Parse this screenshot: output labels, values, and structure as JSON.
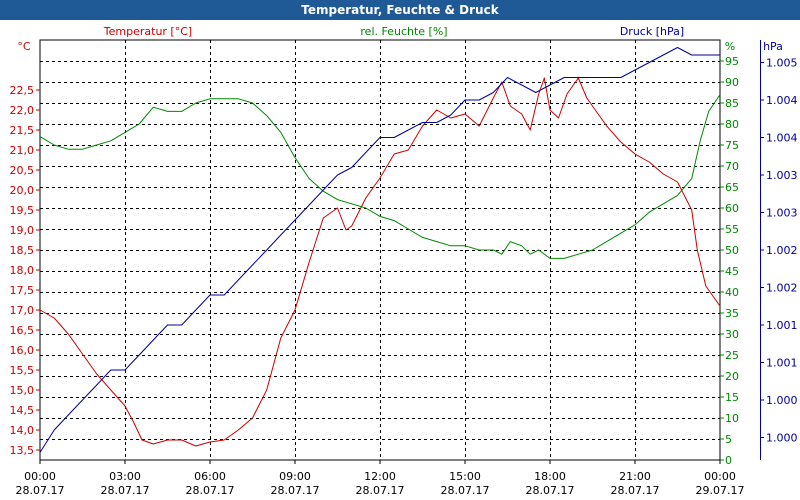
{
  "chart_data": {
    "type": "line",
    "title": "Temperatur, Feuchte & Druck",
    "x_ticks": [
      {
        "time": "00:00",
        "date": "28.07.17"
      },
      {
        "time": "03:00",
        "date": "28.07.17"
      },
      {
        "time": "06:00",
        "date": "28.07.17"
      },
      {
        "time": "09:00",
        "date": "28.07.17"
      },
      {
        "time": "12:00",
        "date": "28.07.17"
      },
      {
        "time": "15:00",
        "date": "28.07.17"
      },
      {
        "time": "18:00",
        "date": "28.07.17"
      },
      {
        "time": "21:00",
        "date": "28.07.17"
      },
      {
        "time": "00:00",
        "date": "29.07.17"
      }
    ],
    "xlim_hours": [
      0,
      24
    ],
    "axes": {
      "temperature": {
        "title": "Temperatur [°C]",
        "unit": "°C",
        "color": "#cc0000",
        "range": [
          13.25,
          23.75
        ],
        "ticks": [
          "13,5",
          "14,0",
          "14,5",
          "15,0",
          "15,5",
          "16,0",
          "16,5",
          "17,0",
          "17,5",
          "18,0",
          "18,5",
          "19,0",
          "19,5",
          "20,0",
          "20,5",
          "21,0",
          "21,5",
          "22,0",
          "22,5"
        ]
      },
      "humidity": {
        "title": "rel. Feuchte [%]",
        "unit": "%",
        "color": "#008800",
        "range": [
          0,
          100
        ],
        "ticks": [
          "0",
          "5",
          "10",
          "15",
          "20",
          "25",
          "30",
          "35",
          "40",
          "45",
          "50",
          "55",
          "60",
          "65",
          "70",
          "75",
          "80",
          "85",
          "90",
          "95"
        ]
      },
      "pressure": {
        "title": "Druck [hPa]",
        "unit": "hPa",
        "color": "#000099",
        "range": [
          999.7,
          1005.3
        ],
        "ticks": [
          "1.000",
          "1.000",
          "1.001",
          "1.001",
          "1.002",
          "1.002",
          "1.003",
          "1.003",
          "1.004",
          "1.004",
          "1.005"
        ]
      }
    },
    "series": [
      {
        "name": "Temperatur",
        "axis": "temperature",
        "color": "#cc0000",
        "points": [
          [
            0,
            17.0
          ],
          [
            0.5,
            16.8
          ],
          [
            1.0,
            16.4
          ],
          [
            1.5,
            15.9
          ],
          [
            2.0,
            15.4
          ],
          [
            2.5,
            15.0
          ],
          [
            3.0,
            14.6
          ],
          [
            3.3,
            14.2
          ],
          [
            3.6,
            13.75
          ],
          [
            4.0,
            13.65
          ],
          [
            4.5,
            13.75
          ],
          [
            5.0,
            13.75
          ],
          [
            5.5,
            13.6
          ],
          [
            6.0,
            13.7
          ],
          [
            6.5,
            13.75
          ],
          [
            7.0,
            14.0
          ],
          [
            7.5,
            14.3
          ],
          [
            8.0,
            15.0
          ],
          [
            8.5,
            16.3
          ],
          [
            9.0,
            17.0
          ],
          [
            9.5,
            18.2
          ],
          [
            10.0,
            19.3
          ],
          [
            10.5,
            19.55
          ],
          [
            10.8,
            19.0
          ],
          [
            11.0,
            19.1
          ],
          [
            11.5,
            19.8
          ],
          [
            12.0,
            20.3
          ],
          [
            12.5,
            20.9
          ],
          [
            13.0,
            21.0
          ],
          [
            13.5,
            21.6
          ],
          [
            14.0,
            22.0
          ],
          [
            14.5,
            21.8
          ],
          [
            15.0,
            21.9
          ],
          [
            15.5,
            21.6
          ],
          [
            16.0,
            22.3
          ],
          [
            16.3,
            22.7
          ],
          [
            16.6,
            22.1
          ],
          [
            17.0,
            21.9
          ],
          [
            17.3,
            21.5
          ],
          [
            17.6,
            22.4
          ],
          [
            17.8,
            22.8
          ],
          [
            18.0,
            22.0
          ],
          [
            18.3,
            21.8
          ],
          [
            18.6,
            22.4
          ],
          [
            19.0,
            22.8
          ],
          [
            19.3,
            22.3
          ],
          [
            19.6,
            22.0
          ],
          [
            20.0,
            21.6
          ],
          [
            20.5,
            21.2
          ],
          [
            21.0,
            20.9
          ],
          [
            21.5,
            20.7
          ],
          [
            22.0,
            20.4
          ],
          [
            22.5,
            20.2
          ],
          [
            23.0,
            19.5
          ],
          [
            23.2,
            18.5
          ],
          [
            23.5,
            17.6
          ],
          [
            24.0,
            17.1
          ]
        ]
      },
      {
        "name": "rel. Feuchte",
        "axis": "humidity",
        "color": "#008800",
        "points": [
          [
            0,
            77
          ],
          [
            0.5,
            75
          ],
          [
            1.0,
            74
          ],
          [
            1.5,
            74
          ],
          [
            2.0,
            75
          ],
          [
            2.5,
            76
          ],
          [
            3.0,
            78
          ],
          [
            3.5,
            80
          ],
          [
            4.0,
            84
          ],
          [
            4.5,
            83
          ],
          [
            5.0,
            83
          ],
          [
            5.5,
            85
          ],
          [
            6.0,
            86
          ],
          [
            6.5,
            86
          ],
          [
            7.0,
            86
          ],
          [
            7.5,
            85
          ],
          [
            8.0,
            82
          ],
          [
            8.5,
            78
          ],
          [
            9.0,
            72
          ],
          [
            9.5,
            67
          ],
          [
            10.0,
            64
          ],
          [
            10.5,
            62
          ],
          [
            11.0,
            61
          ],
          [
            11.5,
            60
          ],
          [
            12.0,
            58
          ],
          [
            12.5,
            57
          ],
          [
            13.0,
            55
          ],
          [
            13.5,
            53
          ],
          [
            14.0,
            52
          ],
          [
            14.5,
            51
          ],
          [
            15.0,
            51
          ],
          [
            15.5,
            50
          ],
          [
            16.0,
            50
          ],
          [
            16.3,
            49
          ],
          [
            16.6,
            52
          ],
          [
            17.0,
            51
          ],
          [
            17.3,
            49
          ],
          [
            17.6,
            50
          ],
          [
            18.0,
            48
          ],
          [
            18.5,
            48
          ],
          [
            19.0,
            49
          ],
          [
            19.5,
            50
          ],
          [
            20.0,
            52
          ],
          [
            20.5,
            54
          ],
          [
            21.0,
            56
          ],
          [
            21.5,
            59
          ],
          [
            22.0,
            61
          ],
          [
            22.5,
            63
          ],
          [
            23.0,
            67
          ],
          [
            23.3,
            76
          ],
          [
            23.6,
            83
          ],
          [
            24.0,
            87
          ]
        ]
      },
      {
        "name": "Druck",
        "axis": "pressure",
        "color": "#000099",
        "points": [
          [
            0,
            999.8
          ],
          [
            0.5,
            1000.1
          ],
          [
            1.0,
            1000.3
          ],
          [
            1.5,
            1000.5
          ],
          [
            2.0,
            1000.7
          ],
          [
            2.5,
            1000.9
          ],
          [
            3.0,
            1000.9
          ],
          [
            3.5,
            1001.1
          ],
          [
            4.0,
            1001.3
          ],
          [
            4.5,
            1001.5
          ],
          [
            5.0,
            1001.5
          ],
          [
            5.5,
            1001.7
          ],
          [
            6.0,
            1001.9
          ],
          [
            6.5,
            1001.9
          ],
          [
            7.0,
            1002.1
          ],
          [
            7.5,
            1002.3
          ],
          [
            8.0,
            1002.5
          ],
          [
            8.5,
            1002.7
          ],
          [
            9.0,
            1002.9
          ],
          [
            9.5,
            1003.1
          ],
          [
            10.0,
            1003.3
          ],
          [
            10.5,
            1003.5
          ],
          [
            11.0,
            1003.6
          ],
          [
            11.5,
            1003.8
          ],
          [
            12.0,
            1004.0
          ],
          [
            12.5,
            1004.0
          ],
          [
            13.0,
            1004.1
          ],
          [
            13.5,
            1004.2
          ],
          [
            14.0,
            1004.2
          ],
          [
            14.5,
            1004.3
          ],
          [
            15.0,
            1004.5
          ],
          [
            15.5,
            1004.5
          ],
          [
            16.0,
            1004.6
          ],
          [
            16.5,
            1004.8
          ],
          [
            17.0,
            1004.7
          ],
          [
            17.5,
            1004.6
          ],
          [
            18.0,
            1004.7
          ],
          [
            18.5,
            1004.8
          ],
          [
            19.0,
            1004.8
          ],
          [
            19.5,
            1004.8
          ],
          [
            20.0,
            1004.8
          ],
          [
            20.5,
            1004.8
          ],
          [
            21.0,
            1004.9
          ],
          [
            21.5,
            1005.0
          ],
          [
            22.0,
            1005.1
          ],
          [
            22.5,
            1005.2
          ],
          [
            23.0,
            1005.1
          ],
          [
            23.5,
            1005.1
          ],
          [
            24.0,
            1005.1
          ]
        ]
      }
    ]
  }
}
